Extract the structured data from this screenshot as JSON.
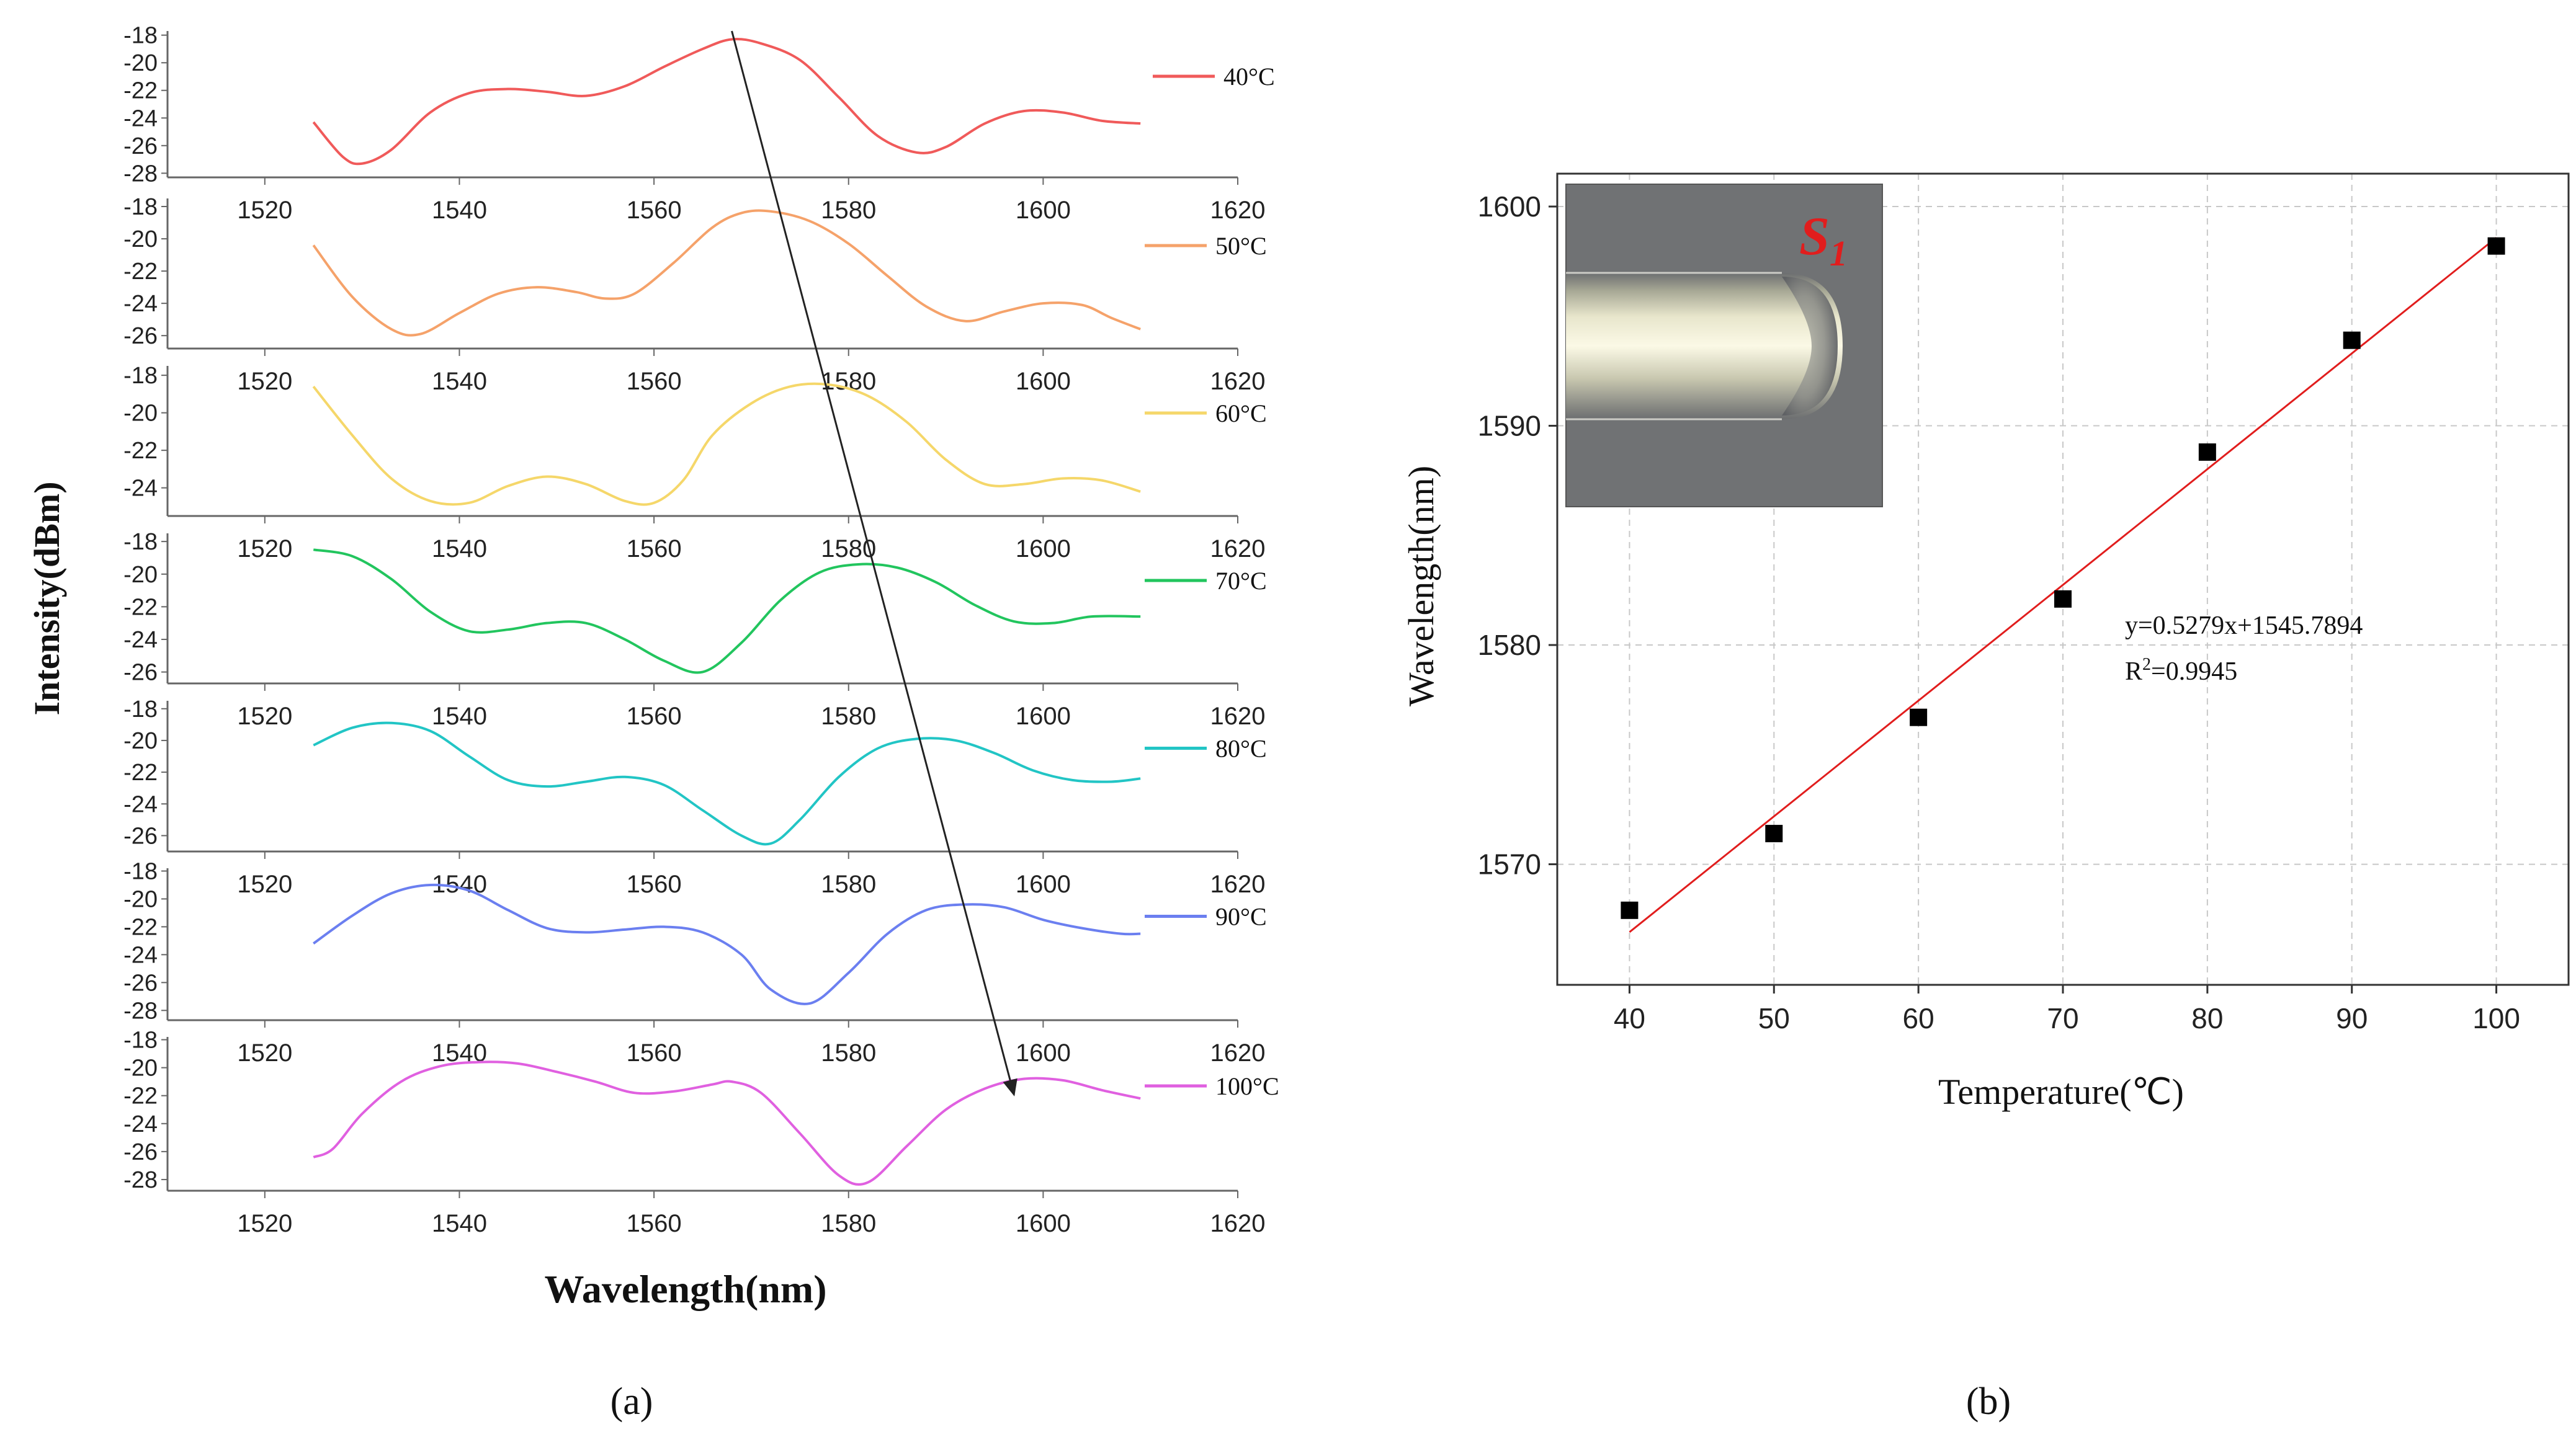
{
  "panel_labels": [
    "(a)",
    "(b)"
  ],
  "chart_data": [
    {
      "type": "line",
      "id": "a",
      "xlabel": "Wavelength(nm)",
      "ylabel": "Intensity(dBm)",
      "xlim": [
        1510,
        1620
      ],
      "x_ticks": [
        1520,
        1540,
        1560,
        1580,
        1600,
        1620
      ],
      "annotation": "arrow tracking spectral peak shift from ~1568 nm (40°C) to ~1597 nm (100°C)",
      "arrow": {
        "from": [
          1568,
          -18
        ],
        "to": [
          1597,
          -21
        ]
      },
      "series": [
        {
          "name": "40°C",
          "color": "#f05a5a",
          "ylim": [
            -28.3,
            -17.7
          ],
          "y_ticks": [
            -18,
            -20,
            -22,
            -24,
            -26,
            -28
          ],
          "x": [
            1525,
            1528,
            1530,
            1533,
            1537,
            1541,
            1545,
            1549,
            1553,
            1557,
            1561,
            1565,
            1568,
            1571,
            1575,
            1579,
            1583,
            1587,
            1590,
            1594,
            1598,
            1602,
            1606,
            1610
          ],
          "y": [
            -24.3,
            -26.8,
            -27.3,
            -26.3,
            -23.6,
            -22.2,
            -21.9,
            -22.1,
            -22.4,
            -21.7,
            -20.3,
            -19.0,
            -18.3,
            -18.6,
            -19.8,
            -22.5,
            -25.3,
            -26.5,
            -26.1,
            -24.4,
            -23.5,
            -23.6,
            -24.2,
            -24.4
          ]
        },
        {
          "name": "50°C",
          "color": "#f5a26a",
          "ylim": [
            -26.8,
            -17.5
          ],
          "y_ticks": [
            -18,
            -20,
            -22,
            -24,
            -26
          ],
          "x": [
            1525,
            1529,
            1533,
            1536,
            1540,
            1544,
            1548,
            1552,
            1555,
            1558,
            1562,
            1566,
            1569,
            1572,
            1576,
            1580,
            1584,
            1588,
            1592,
            1596,
            1600,
            1604,
            1607,
            1610
          ],
          "y": [
            -20.4,
            -23.6,
            -25.6,
            -25.9,
            -24.6,
            -23.4,
            -23.0,
            -23.3,
            -23.7,
            -23.4,
            -21.5,
            -19.3,
            -18.4,
            -18.3,
            -18.9,
            -20.3,
            -22.3,
            -24.2,
            -25.1,
            -24.5,
            -24.0,
            -24.1,
            -24.9,
            -25.6
          ]
        },
        {
          "name": "60°C",
          "color": "#f5d76a",
          "ylim": [
            -25.5,
            -17.5
          ],
          "y_ticks": [
            -18,
            -20,
            -22,
            -24
          ],
          "x": [
            1525,
            1529,
            1533,
            1537,
            1541,
            1545,
            1549,
            1553,
            1557,
            1560,
            1563,
            1566,
            1570,
            1574,
            1578,
            1582,
            1586,
            1590,
            1594,
            1598,
            1602,
            1606,
            1610
          ],
          "y": [
            -18.6,
            -21.2,
            -23.5,
            -24.7,
            -24.8,
            -23.9,
            -23.4,
            -23.8,
            -24.7,
            -24.8,
            -23.6,
            -21.2,
            -19.5,
            -18.6,
            -18.5,
            -19.1,
            -20.5,
            -22.5,
            -23.8,
            -23.8,
            -23.5,
            -23.6,
            -24.2
          ]
        },
        {
          "name": "70°C",
          "color": "#22c55e",
          "ylim": [
            -26.7,
            -17.5
          ],
          "y_ticks": [
            -18,
            -20,
            -22,
            -24,
            -26
          ],
          "x": [
            1525,
            1529,
            1533,
            1537,
            1541,
            1545,
            1549,
            1553,
            1557,
            1561,
            1565,
            1569,
            1573,
            1577,
            1581,
            1585,
            1589,
            1593,
            1597,
            1601,
            1605,
            1610
          ],
          "y": [
            -18.5,
            -18.9,
            -20.3,
            -22.3,
            -23.5,
            -23.4,
            -23.0,
            -23.0,
            -24.0,
            -25.3,
            -26.0,
            -24.2,
            -21.6,
            -19.9,
            -19.4,
            -19.6,
            -20.5,
            -21.9,
            -22.9,
            -23.0,
            -22.6,
            -22.6
          ]
        },
        {
          "name": "80°C",
          "color": "#22c5c5",
          "ylim": [
            -27.0,
            -17.5
          ],
          "y_ticks": [
            -18,
            -20,
            -22,
            -24,
            -26
          ],
          "x": [
            1525,
            1529,
            1533,
            1537,
            1541,
            1545,
            1549,
            1553,
            1557,
            1561,
            1565,
            1569,
            1572,
            1575,
            1579,
            1583,
            1587,
            1591,
            1595,
            1599,
            1603,
            1607,
            1610
          ],
          "y": [
            -20.3,
            -19.2,
            -18.9,
            -19.4,
            -21.0,
            -22.5,
            -22.9,
            -22.6,
            -22.3,
            -22.8,
            -24.4,
            -26.0,
            -26.5,
            -25.0,
            -22.3,
            -20.5,
            -19.9,
            -20.0,
            -20.8,
            -21.9,
            -22.5,
            -22.6,
            -22.4
          ]
        },
        {
          "name": "90°C",
          "color": "#6b7ff0",
          "ylim": [
            -28.7,
            -17.8
          ],
          "y_ticks": [
            -18,
            -20,
            -22,
            -24,
            -26,
            -28
          ],
          "x": [
            1525,
            1529,
            1533,
            1537,
            1541,
            1545,
            1549,
            1553,
            1557,
            1561,
            1565,
            1569,
            1572,
            1576,
            1580,
            1584,
            1588,
            1592,
            1596,
            1600,
            1604,
            1608,
            1610
          ],
          "y": [
            -23.2,
            -21.2,
            -19.6,
            -19.0,
            -19.4,
            -20.8,
            -22.1,
            -22.4,
            -22.2,
            -22.0,
            -22.4,
            -24.0,
            -26.5,
            -27.5,
            -25.3,
            -22.5,
            -20.8,
            -20.4,
            -20.6,
            -21.5,
            -22.1,
            -22.5,
            -22.5
          ]
        },
        {
          "name": "100°C",
          "color": "#e060e0",
          "ylim": [
            -28.8,
            -17.8
          ],
          "y_ticks": [
            -18,
            -20,
            -22,
            -24,
            -26,
            -28
          ],
          "x": [
            1525,
            1527,
            1530,
            1534,
            1538,
            1542,
            1546,
            1550,
            1554,
            1558,
            1562,
            1566,
            1568,
            1571,
            1575,
            1579,
            1582,
            1586,
            1590,
            1594,
            1598,
            1602,
            1606,
            1610
          ],
          "y": [
            -26.4,
            -25.8,
            -23.3,
            -21.0,
            -19.9,
            -19.6,
            -19.7,
            -20.3,
            -21.0,
            -21.8,
            -21.7,
            -21.2,
            -21.0,
            -21.8,
            -24.7,
            -27.7,
            -28.2,
            -25.6,
            -23.0,
            -21.5,
            -20.8,
            -20.9,
            -21.6,
            -22.2
          ]
        }
      ]
    },
    {
      "type": "scatter",
      "id": "b",
      "xlabel": "Temperature(℃)",
      "ylabel": "Wavelength(nm)",
      "xlim": [
        35,
        105
      ],
      "ylim": [
        1564.5,
        1601.5
      ],
      "x_ticks": [
        40,
        50,
        60,
        70,
        80,
        90,
        100
      ],
      "y_ticks": [
        1570,
        1580,
        1590,
        1600
      ],
      "grid": true,
      "points": {
        "x": [
          40,
          50,
          60,
          70,
          80,
          90,
          100
        ],
        "y": [
          1567.9,
          1571.4,
          1576.7,
          1582.1,
          1588.8,
          1593.9,
          1598.2
        ]
      },
      "fit": {
        "slope": 0.5279,
        "intercept": 1545.7894,
        "x_range": [
          40,
          100
        ],
        "color": "#e11d1d"
      },
      "equation_text": "y=0.5279x+1545.7894",
      "r2_prefix": "R",
      "r2_sup": "2",
      "r2_suffix": "=0.9945",
      "inset_label": "S",
      "inset_label_sub": "1",
      "inset_label_color": "#e11d1d"
    }
  ]
}
